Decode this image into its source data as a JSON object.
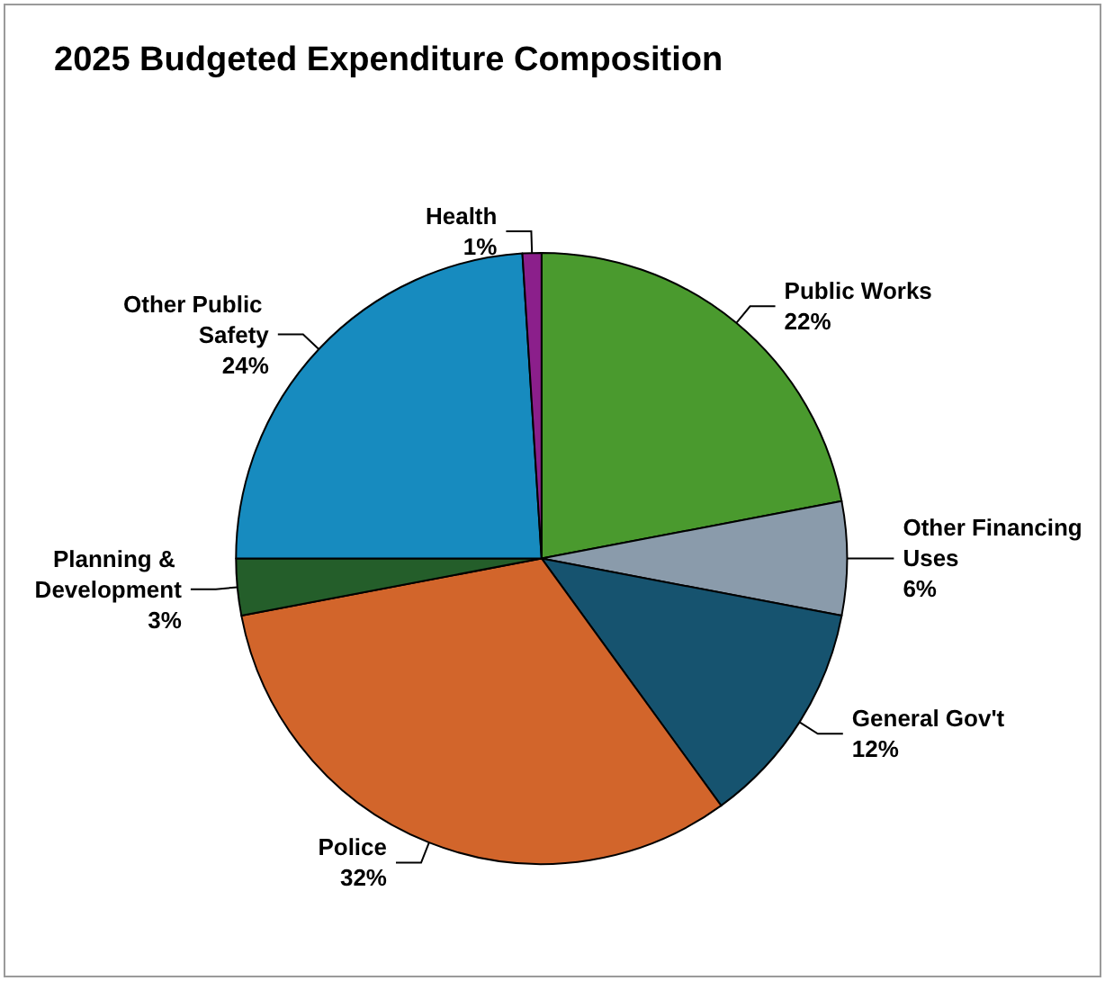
{
  "chart_data": {
    "type": "pie",
    "title": "2025 Budgeted Expenditure Composition",
    "categories": [
      "Public Works",
      "Other Financing Uses",
      "General Gov't",
      "Police",
      "Planning & Development",
      "Other Public Safety",
      "Health"
    ],
    "values": [
      22,
      6,
      12,
      32,
      3,
      24,
      1
    ],
    "value_labels": [
      "22%",
      "6%",
      "12%",
      "32%",
      "3%",
      "24%",
      "1%"
    ],
    "colors": [
      "#4a9a2e",
      "#8a9bab",
      "#16536f",
      "#d2652b",
      "#245e2a",
      "#178bbf",
      "#8b1f8b"
    ],
    "legend": false
  }
}
